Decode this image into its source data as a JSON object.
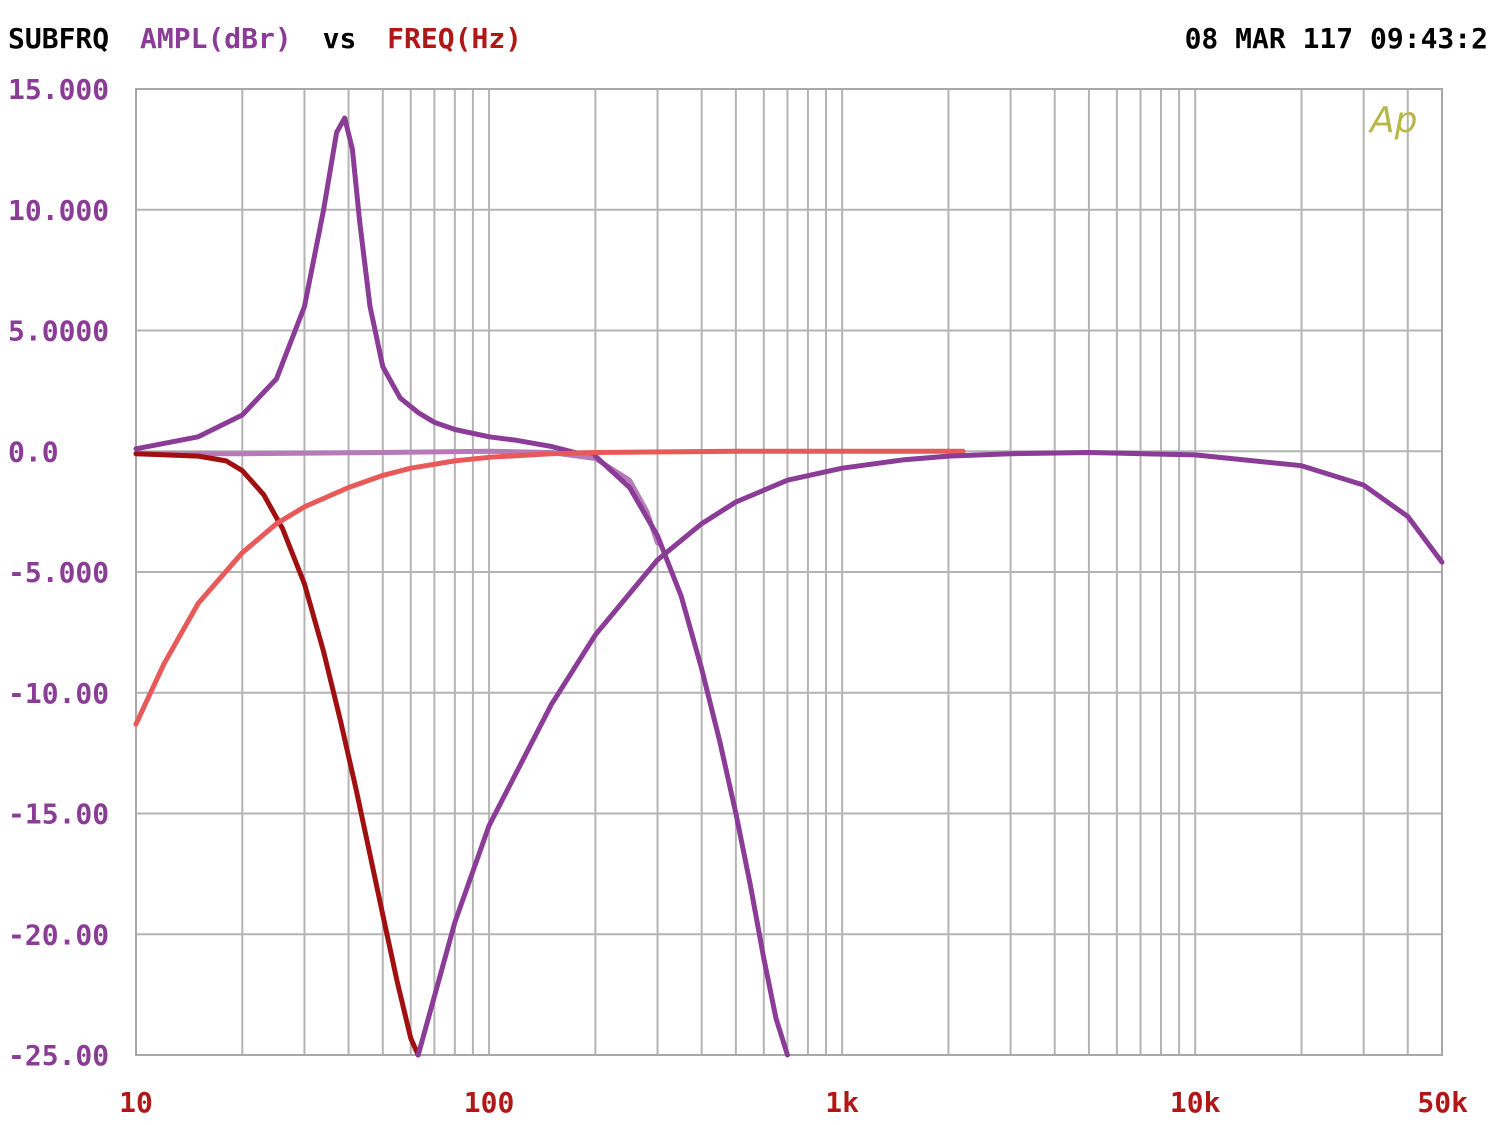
{
  "header": {
    "title_prefix": "SUBFRQ",
    "y_quantity": "AMPL(dBr)",
    "vs": "vs",
    "x_quantity": "FREQ(Hz)",
    "timestamp": "08 MAR 117 09:43:2"
  },
  "logo_text": "Ap",
  "colors": {
    "ylabel": "#8a3c96",
    "xlabel": "#b01818",
    "header_text": "#000000",
    "logo": "#b8b84a",
    "grid": "#b4b4b4"
  },
  "chart_data": {
    "type": "line",
    "x_scale": "log",
    "xlim": [
      10,
      50000
    ],
    "ylim": [
      -25,
      15
    ],
    "grid": true,
    "y_tick_values": [
      15,
      10,
      5,
      0,
      -5,
      -10,
      -15,
      -20,
      -25
    ],
    "y_tick_labels": [
      "15.000",
      "10.000",
      "5.0000",
      "0.0",
      "-5.000",
      "-10.00",
      "-15.00",
      "-20.00",
      "-25.00"
    ],
    "x_tick_values": [
      10,
      100,
      1000,
      10000,
      50000
    ],
    "x_tick_labels": [
      "10",
      "100",
      "1k",
      "10k",
      "50k"
    ],
    "series": [
      {
        "color": "#8a3c96",
        "x": [
          10,
          15,
          20,
          25,
          30,
          34,
          37,
          39,
          41,
          43,
          46,
          50,
          56,
          63,
          70,
          80,
          100,
          120,
          150,
          180,
          200
        ],
        "y": [
          0.1,
          0.6,
          1.5,
          3.0,
          6.0,
          10.0,
          13.2,
          13.8,
          12.5,
          9.5,
          6.0,
          3.5,
          2.2,
          1.6,
          1.2,
          0.9,
          0.6,
          0.45,
          0.2,
          -0.1,
          -0.2
        ]
      },
      {
        "color": "#b67ab8",
        "x": [
          10,
          20,
          50,
          100,
          150,
          200,
          250,
          280,
          300
        ],
        "y": [
          -0.1,
          -0.1,
          -0.05,
          0.0,
          -0.05,
          -0.3,
          -1.2,
          -2.5,
          -3.8
        ]
      },
      {
        "color": "#8a3c96",
        "x": [
          200,
          250,
          300,
          350,
          400,
          450,
          500,
          550,
          600,
          650,
          700
        ],
        "y": [
          -0.2,
          -1.5,
          -3.5,
          -6.0,
          -9.0,
          -12.0,
          -15.0,
          -18.0,
          -21.0,
          -23.5,
          -25.0
        ]
      },
      {
        "color": "#a01010",
        "x": [
          10,
          15,
          18,
          20,
          23,
          26,
          30,
          34,
          38,
          42,
          46,
          50,
          55,
          60,
          63
        ],
        "y": [
          -0.1,
          -0.2,
          -0.4,
          -0.8,
          -1.8,
          -3.2,
          -5.5,
          -8.3,
          -11.2,
          -14.0,
          -16.7,
          -19.2,
          -22.0,
          -24.3,
          -25.0
        ]
      },
      {
        "color": "#e85a5a",
        "x": [
          10,
          12,
          15,
          20,
          25,
          30,
          40,
          50,
          60,
          80,
          100,
          150,
          200,
          500,
          1000,
          2000,
          2200
        ],
        "y": [
          -11.3,
          -8.8,
          -6.3,
          -4.2,
          -3.0,
          -2.3,
          -1.5,
          -1.0,
          -0.7,
          -0.4,
          -0.25,
          -0.1,
          -0.05,
          0.0,
          0.0,
          0.0,
          0.0
        ]
      },
      {
        "color": "#8a3c96",
        "x": [
          63,
          80,
          100,
          150,
          200,
          300,
          400,
          500,
          700,
          1000,
          1500,
          2000,
          3000,
          5000,
          10000,
          20000,
          30000,
          40000,
          50000
        ],
        "y": [
          -25.0,
          -19.5,
          -15.5,
          -10.5,
          -7.6,
          -4.5,
          -3.0,
          -2.1,
          -1.2,
          -0.7,
          -0.35,
          -0.2,
          -0.1,
          -0.05,
          -0.15,
          -0.6,
          -1.4,
          -2.7,
          -4.6
        ]
      }
    ]
  }
}
